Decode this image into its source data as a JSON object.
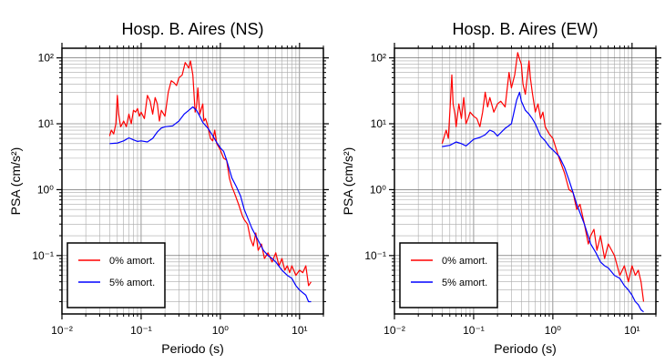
{
  "chart_data": [
    {
      "type": "line",
      "title": "Hosp. B. Aires (NS)",
      "xlabel": "Periodo (s)",
      "ylabel": "PSA (cm/s²)",
      "xscale": "log",
      "yscale": "log",
      "xlim": [
        0.01,
        20
      ],
      "ylim": [
        0.013,
        140
      ],
      "x_ticks": [
        "10⁻²",
        "10⁻¹",
        "10⁰",
        "10¹"
      ],
      "y_ticks": [
        "10⁻¹",
        "10⁰",
        "10¹",
        "10²"
      ],
      "grid": true,
      "legend_position": "bottom-left",
      "series": [
        {
          "name": "0% amort.",
          "color": "#ff0000",
          "x": [
            0.04,
            0.042,
            0.045,
            0.048,
            0.05,
            0.052,
            0.055,
            0.058,
            0.06,
            0.065,
            0.07,
            0.075,
            0.08,
            0.085,
            0.09,
            0.095,
            0.1,
            0.11,
            0.12,
            0.13,
            0.14,
            0.15,
            0.16,
            0.17,
            0.18,
            0.2,
            0.22,
            0.24,
            0.26,
            0.28,
            0.3,
            0.33,
            0.36,
            0.4,
            0.42,
            0.45,
            0.48,
            0.5,
            0.52,
            0.55,
            0.6,
            0.62,
            0.65,
            0.7,
            0.75,
            0.8,
            0.85,
            0.9,
            0.95,
            1.0,
            1.1,
            1.2,
            1.3,
            1.4,
            1.5,
            1.7,
            1.9,
            2.0,
            2.2,
            2.4,
            2.6,
            2.8,
            3.0,
            3.3,
            3.6,
            4.0,
            4.5,
            5.0,
            5.5,
            6.0,
            6.5,
            7.0,
            7.5,
            8.0,
            9.0,
            10.0,
            11.0,
            12.0,
            13.0,
            14.0
          ],
          "values": [
            6.5,
            8,
            7,
            10,
            27,
            14,
            9,
            10,
            11,
            9,
            14,
            10,
            16,
            15,
            17,
            13,
            15,
            12,
            27,
            22,
            14,
            25,
            20,
            11,
            16,
            13,
            30,
            45,
            42,
            38,
            50,
            55,
            85,
            70,
            90,
            55,
            15,
            18,
            35,
            14,
            20,
            11,
            12,
            9,
            6,
            5.5,
            8,
            5,
            4.5,
            4,
            3,
            2.8,
            1.5,
            1.1,
            0.9,
            0.6,
            0.4,
            0.35,
            0.3,
            0.18,
            0.14,
            0.22,
            0.12,
            0.15,
            0.09,
            0.11,
            0.08,
            0.11,
            0.07,
            0.09,
            0.06,
            0.07,
            0.055,
            0.07,
            0.05,
            0.06,
            0.055,
            0.07,
            0.035,
            0.04
          ]
        },
        {
          "name": "5% amort.",
          "color": "#0000ff",
          "x": [
            0.04,
            0.05,
            0.06,
            0.07,
            0.08,
            0.09,
            0.1,
            0.12,
            0.14,
            0.16,
            0.18,
            0.2,
            0.25,
            0.3,
            0.35,
            0.4,
            0.45,
            0.5,
            0.55,
            0.6,
            0.7,
            0.8,
            0.9,
            1.0,
            1.1,
            1.2,
            1.4,
            1.6,
            1.8,
            2.0,
            2.5,
            3.0,
            3.5,
            4.0,
            4.5,
            5.0,
            6.0,
            7.0,
            8.0,
            9.0,
            10.0,
            12.0,
            13.0,
            14.0
          ],
          "values": [
            5,
            5.1,
            5.5,
            6.1,
            5.7,
            5.4,
            5.5,
            5.3,
            6,
            7.5,
            8.6,
            9,
            9.3,
            11,
            14,
            16,
            18,
            16,
            13,
            10.5,
            8.5,
            6.6,
            5.2,
            4.3,
            3.8,
            2.8,
            1.5,
            1.1,
            0.8,
            0.5,
            0.26,
            0.17,
            0.12,
            0.1,
            0.09,
            0.08,
            0.06,
            0.05,
            0.045,
            0.035,
            0.03,
            0.025,
            0.02,
            0.02
          ]
        }
      ]
    },
    {
      "type": "line",
      "title": "Hosp. B. Aires (EW)",
      "xlabel": "Periodo (s)",
      "ylabel": "PSA (cm/s²)",
      "xscale": "log",
      "yscale": "log",
      "xlim": [
        0.01,
        20
      ],
      "ylim": [
        0.013,
        140
      ],
      "x_ticks": [
        "10⁻²",
        "10⁻¹",
        "10⁰",
        "10¹"
      ],
      "y_ticks": [
        "10⁻¹",
        "10⁰",
        "10¹",
        "10²"
      ],
      "grid": true,
      "legend_position": "bottom-left",
      "series": [
        {
          "name": "0% amort.",
          "color": "#ff0000",
          "x": [
            0.04,
            0.045,
            0.048,
            0.05,
            0.053,
            0.055,
            0.058,
            0.06,
            0.065,
            0.07,
            0.075,
            0.08,
            0.085,
            0.09,
            0.1,
            0.11,
            0.12,
            0.13,
            0.14,
            0.15,
            0.16,
            0.18,
            0.2,
            0.22,
            0.25,
            0.28,
            0.3,
            0.33,
            0.36,
            0.38,
            0.4,
            0.42,
            0.45,
            0.5,
            0.52,
            0.55,
            0.6,
            0.65,
            0.7,
            0.75,
            0.8,
            0.9,
            1.0,
            1.2,
            1.4,
            1.6,
            1.8,
            2.0,
            2.2,
            2.5,
            2.8,
            3.0,
            3.3,
            3.6,
            4.0,
            4.5,
            5.0,
            6.0,
            7.0,
            8.0,
            9.0,
            10.0,
            11.0,
            12.0,
            13.0,
            14.0
          ],
          "values": [
            5,
            8,
            6,
            15,
            55,
            20,
            14,
            9,
            20,
            12,
            25,
            10,
            12,
            15,
            13,
            12,
            9,
            15,
            30,
            18,
            25,
            15,
            20,
            22,
            18,
            60,
            35,
            55,
            120,
            95,
            80,
            40,
            28,
            90,
            50,
            30,
            15,
            20,
            12,
            15,
            9,
            7,
            6,
            3,
            1.8,
            1,
            0.9,
            0.5,
            0.6,
            0.3,
            0.15,
            0.2,
            0.25,
            0.12,
            0.2,
            0.09,
            0.15,
            0.1,
            0.05,
            0.07,
            0.04,
            0.07,
            0.05,
            0.06,
            0.04,
            0.02
          ]
        },
        {
          "name": "5% amort.",
          "color": "#0000ff",
          "x": [
            0.04,
            0.05,
            0.06,
            0.07,
            0.08,
            0.09,
            0.1,
            0.12,
            0.14,
            0.16,
            0.18,
            0.2,
            0.25,
            0.3,
            0.35,
            0.38,
            0.4,
            0.45,
            0.5,
            0.55,
            0.6,
            0.7,
            0.8,
            0.9,
            1.0,
            1.2,
            1.4,
            1.6,
            1.8,
            2.0,
            2.5,
            3.0,
            3.5,
            4.0,
            4.5,
            5.0,
            6.0,
            7.0,
            8.0,
            9.0,
            10.0,
            11.0,
            12.0,
            13.0,
            14.0
          ],
          "values": [
            4.5,
            4.7,
            5.3,
            5,
            4.6,
            5.2,
            5.8,
            6.2,
            6.8,
            8,
            7.5,
            6.5,
            8.5,
            10,
            23,
            30,
            22,
            16,
            14,
            12,
            10,
            6.5,
            5.5,
            4.5,
            4,
            3.2,
            2.2,
            1.4,
            0.9,
            0.6,
            0.3,
            0.15,
            0.11,
            0.08,
            0.07,
            0.065,
            0.05,
            0.045,
            0.035,
            0.03,
            0.025,
            0.02,
            0.018,
            0.015,
            0.014
          ]
        }
      ]
    }
  ]
}
